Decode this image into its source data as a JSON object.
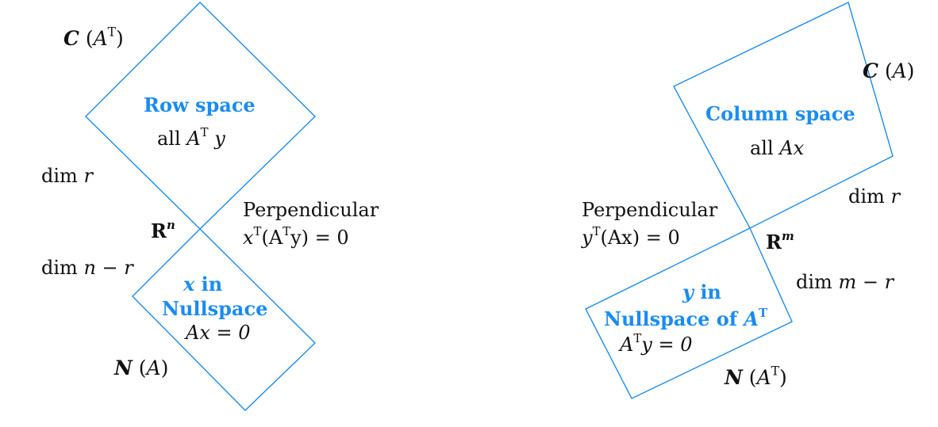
{
  "colors": {
    "outline": "#1a8cf0",
    "heading": "#1a8cf0",
    "text": "#111111"
  },
  "left": {
    "row_space": {
      "space_label": "C",
      "matrix": "A",
      "transpose": "T",
      "title": "Row space",
      "content_prefix": "all",
      "content_matrix": "A",
      "content_vector": "y",
      "dim_label": "dim",
      "dim_value": "r"
    },
    "ambient": {
      "field": "R",
      "exponent": "n"
    },
    "perpendicular": {
      "title": "Perpendicular",
      "equation_pre": "x",
      "equation_mid": "(A",
      "equation_post": "y) = 0"
    },
    "nullspace": {
      "title_var": "x",
      "title_in": "in",
      "title_line2": "Nullspace",
      "equation": "Ax = 0",
      "space_label": "N",
      "matrix": "A",
      "dim_label": "dim",
      "dim_value": "n − r"
    }
  },
  "right": {
    "column_space": {
      "space_label": "C",
      "matrix": "A",
      "title": "Column space",
      "content_prefix": "all",
      "content": "Ax",
      "dim_label": "dim",
      "dim_value": "r"
    },
    "ambient": {
      "field": "R",
      "exponent": "m"
    },
    "perpendicular": {
      "title": "Perpendicular",
      "equation_pre": "y",
      "equation_post": "(Ax) = 0"
    },
    "left_nullspace": {
      "title_var": "y",
      "title_in": "in",
      "title_line2": "Nullspace of",
      "title_matrix": "A",
      "equation_pre": "A",
      "equation_post": "y = 0",
      "space_label": "N",
      "matrix": "A",
      "dim_label": "dim",
      "dim_value": "m − r"
    }
  }
}
